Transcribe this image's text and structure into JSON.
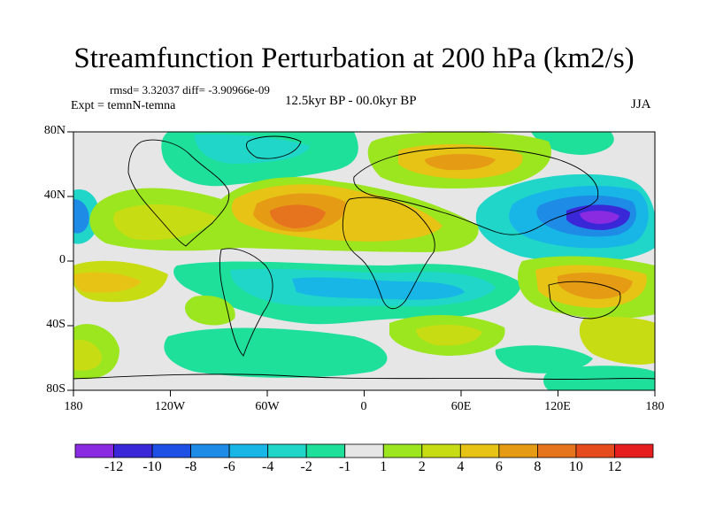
{
  "title": "Streamfunction Perturbation at 200 hPa (km2/s)",
  "stats_line": "rmsd= 3.32037 diff= -3.90966e-09",
  "experiment": "Expt = temnN-temna",
  "period": "12.5kyr BP - 00.0kyr BP",
  "season": "JJA",
  "lat_labels": [
    "80N",
    "40N",
    "0",
    "40S",
    "80S"
  ],
  "lon_labels": [
    "180",
    "120W",
    "60W",
    "0",
    "60E",
    "120E",
    "180"
  ],
  "colorbar": {
    "labels": [
      "-12",
      "-10",
      "-8",
      "-6",
      "-4",
      "-2",
      "-1",
      "1",
      "2",
      "4",
      "6",
      "8",
      "10",
      "12"
    ],
    "colors": [
      "#8a2be2",
      "#3a28d8",
      "#1e50e6",
      "#1e8be6",
      "#17b6e6",
      "#20d6c8",
      "#1fe09a",
      "#e6e6e6",
      "#9be61e",
      "#c8dc14",
      "#e6c314",
      "#e69b14",
      "#e6731e",
      "#e64b1e",
      "#e61e1e"
    ]
  },
  "field_colors": {
    "background": "#e6e6e6",
    "neutral": "#e6e6e6",
    "land_outline": "#000000"
  }
}
